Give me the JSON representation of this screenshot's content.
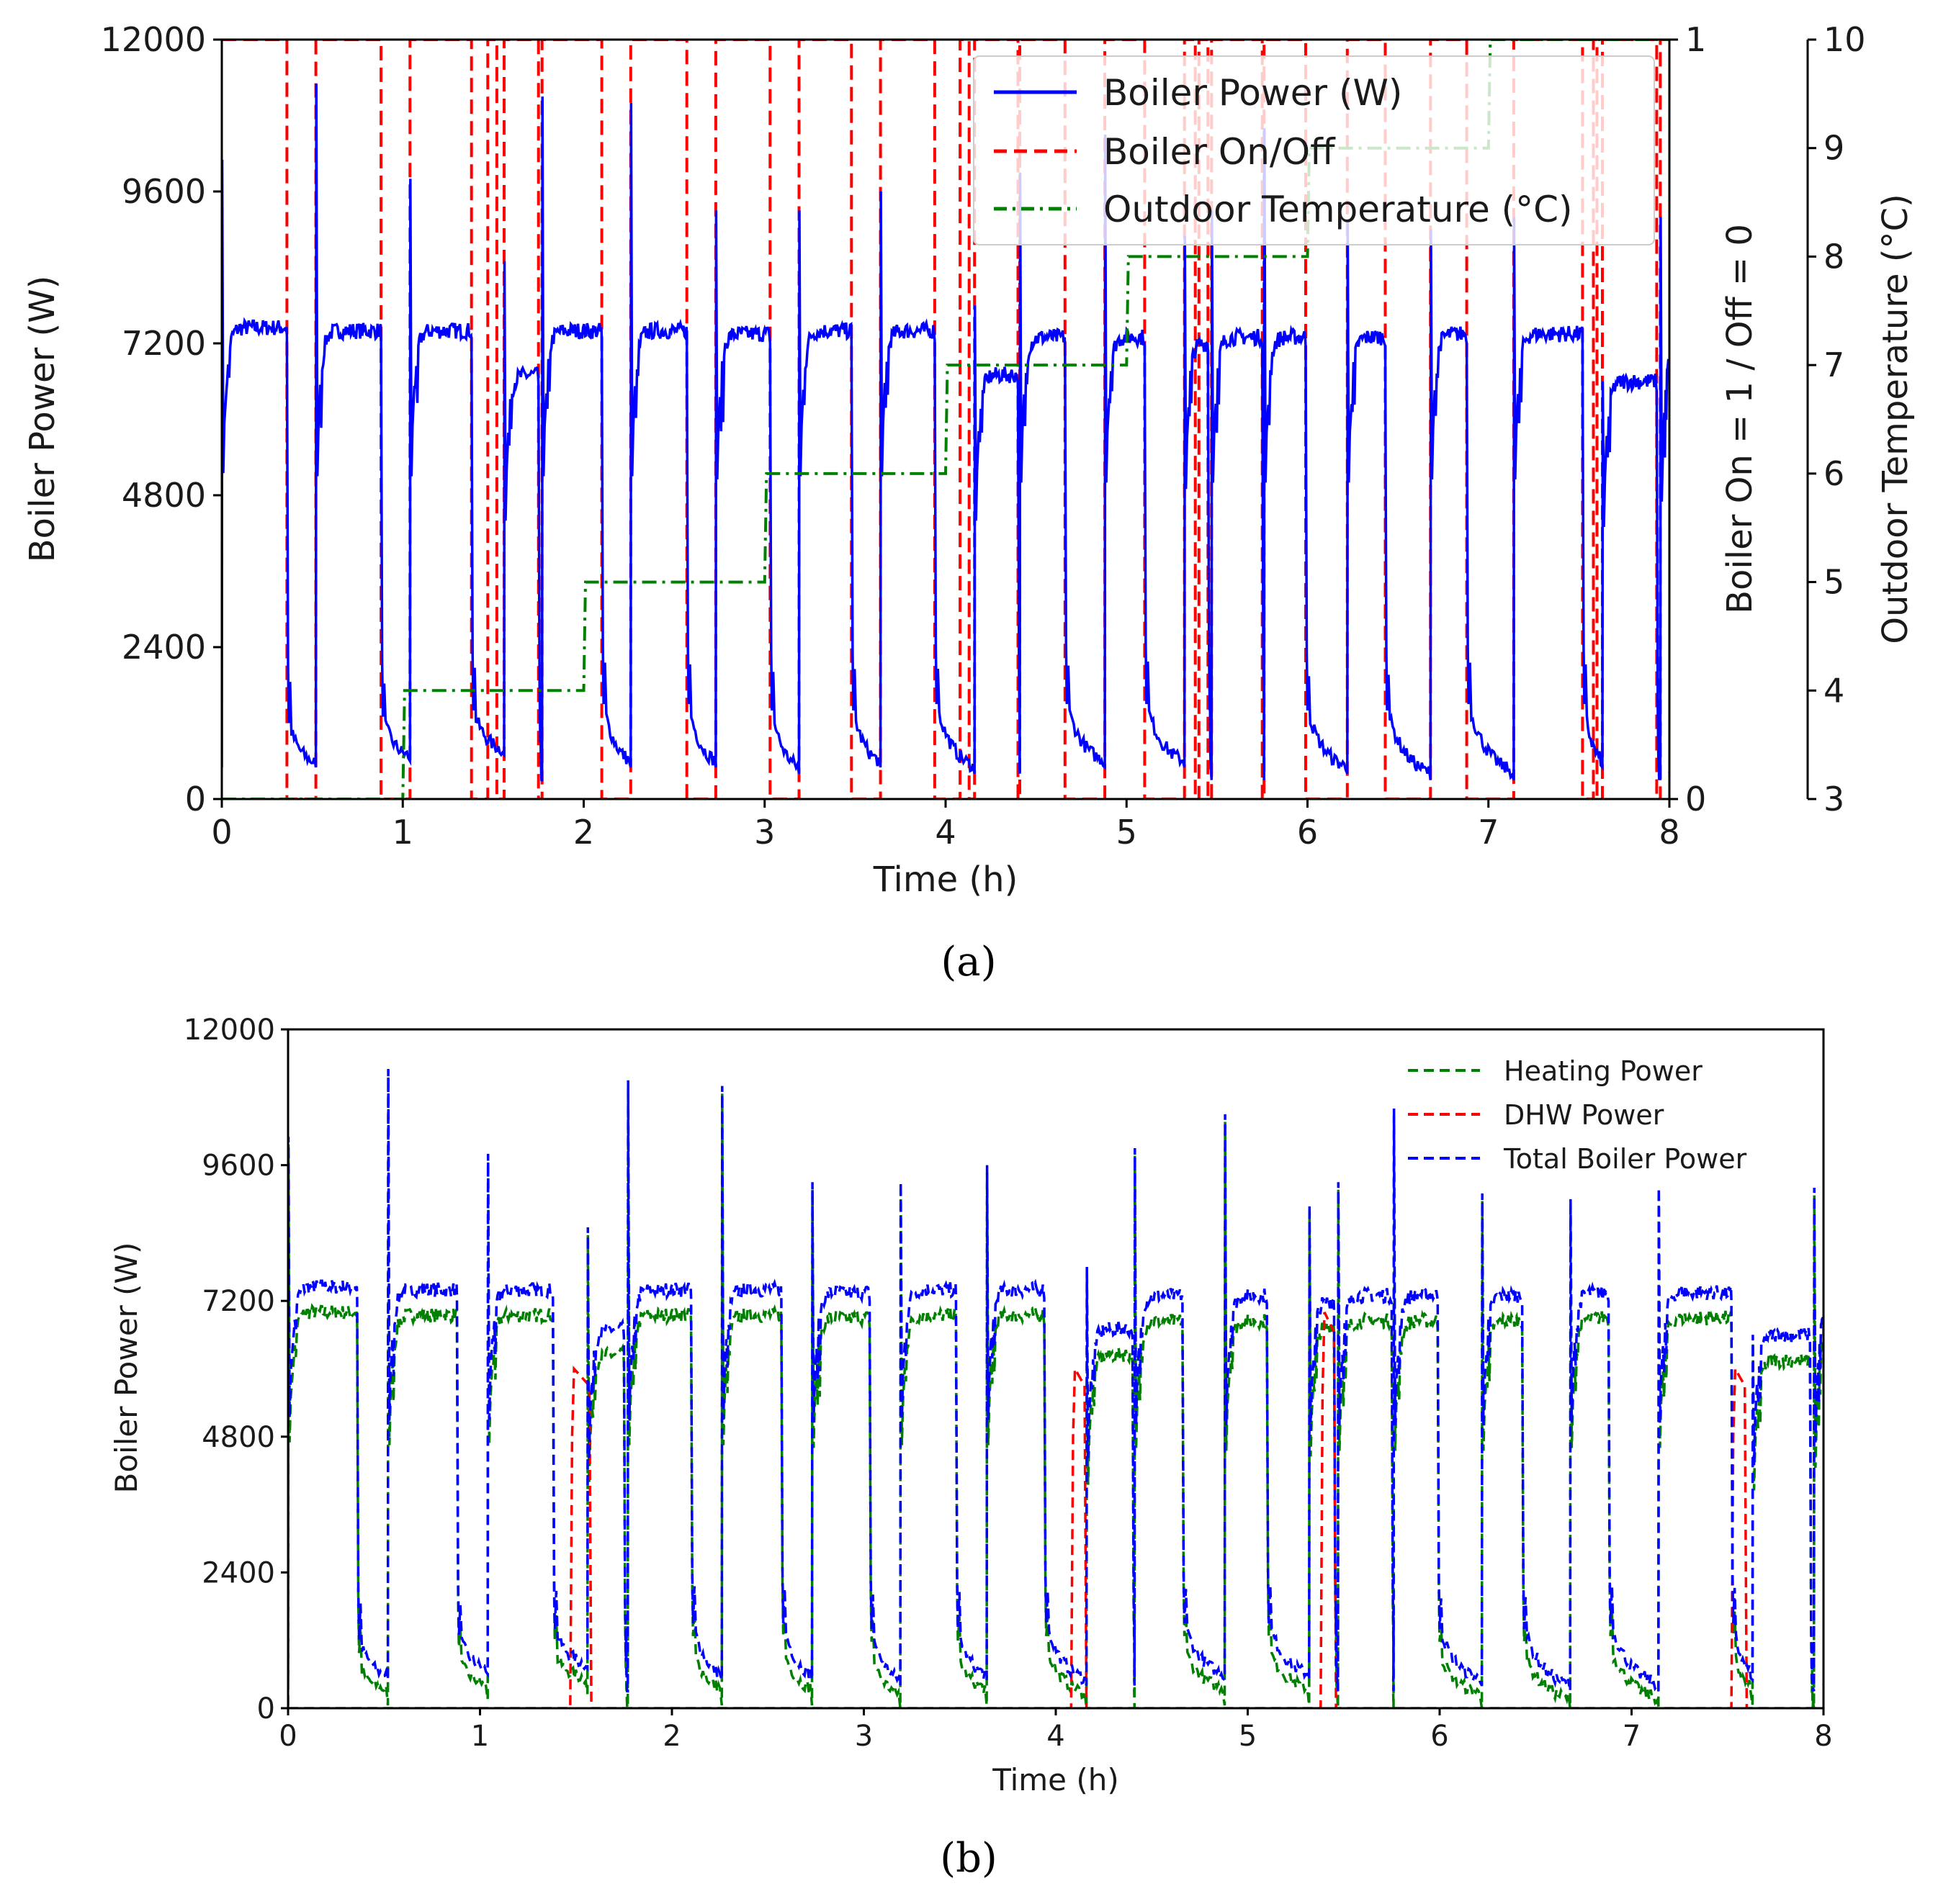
{
  "chart_data": [
    {
      "panel": "a",
      "type": "line",
      "caption": "(a)",
      "xlabel": "Time (h)",
      "ylabel_left": "Boiler Power (W)",
      "ylabel_right1": "Boiler On = 1 / Off = 0",
      "ylabel_right2": "Outdoor Temperature (°C)",
      "xlim": [
        0,
        8
      ],
      "ylim_left": [
        0,
        12000
      ],
      "ylim_right1": [
        0,
        1
      ],
      "ylim_right2": [
        3,
        10
      ],
      "x_ticks": [
        "0",
        "1",
        "2",
        "3",
        "4",
        "5",
        "6",
        "7",
        "8"
      ],
      "y_ticks_left": [
        "0",
        "2400",
        "4800",
        "7200",
        "9600",
        "12000"
      ],
      "y_ticks_right1": [
        "0",
        "1"
      ],
      "y_ticks_right2": [
        "3",
        "4",
        "5",
        "6",
        "7",
        "8",
        "9",
        "10"
      ],
      "legend": {
        "position": "top-right",
        "entries": [
          {
            "label": "Boiler Power (W)",
            "color": "#0000ff",
            "style": "solid"
          },
          {
            "label": "Boiler On/Off",
            "color": "#ff0000",
            "style": "dashed"
          },
          {
            "label": "Outdoor Temperature (°C)",
            "color": "#008000",
            "style": "dashdot"
          }
        ]
      },
      "boiler_on_off": {
        "on_periods": [
          [
            0.0,
            0.36
          ],
          [
            0.52,
            0.88
          ],
          [
            1.04,
            1.38
          ],
          [
            1.47,
            1.52
          ],
          [
            1.56,
            1.75
          ],
          [
            1.77,
            2.1
          ],
          [
            2.26,
            2.57
          ],
          [
            2.73,
            3.03
          ],
          [
            3.19,
            3.48
          ],
          [
            3.64,
            3.94
          ],
          [
            4.08,
            4.13
          ],
          [
            4.16,
            4.4
          ],
          [
            4.41,
            4.66
          ],
          [
            4.88,
            5.1
          ],
          [
            5.32,
            5.38
          ],
          [
            5.4,
            5.45
          ],
          [
            5.47,
            5.75
          ],
          [
            5.76,
            5.99
          ],
          [
            6.22,
            6.43
          ],
          [
            6.68,
            6.88
          ],
          [
            7.14,
            7.52
          ],
          [
            7.58,
            7.6
          ],
          [
            7.63,
            7.93
          ],
          [
            7.95,
            8.0
          ]
        ]
      },
      "outdoor_temperature": {
        "x": [
          0,
          1,
          1.01,
          2,
          2.01,
          3,
          3.01,
          4,
          4.01,
          5,
          5.01,
          6,
          6.01,
          7,
          7.01,
          8
        ],
        "y": [
          3,
          3,
          4,
          4,
          5,
          5,
          6,
          6,
          7,
          7,
          8,
          8,
          9,
          9,
          10,
          10
        ]
      },
      "boiler_power": {
        "cycle_starts": [
          0.0,
          0.52,
          1.04,
          1.56,
          1.77,
          2.26,
          2.73,
          3.19,
          3.64,
          4.16,
          4.41,
          4.88,
          5.32,
          5.47,
          5.76,
          6.22,
          6.68,
          7.14,
          7.63,
          7.95
        ],
        "cycle_ends": [
          0.36,
          0.88,
          1.38,
          1.75,
          2.1,
          2.57,
          3.03,
          3.48,
          3.94,
          4.4,
          4.66,
          5.1,
          5.45,
          5.75,
          5.99,
          6.43,
          6.88,
          7.52,
          7.93,
          8.0
        ],
        "start_peaks": [
          10100,
          11300,
          9800,
          8500,
          11100,
          11000,
          9300,
          9300,
          9600,
          7800,
          9900,
          10500,
          8900,
          9300,
          10600,
          9100,
          9000,
          9200,
          6600,
          9200
        ],
        "plateaus": [
          7450,
          7400,
          7400,
          6700,
          7400,
          7400,
          7350,
          7400,
          7400,
          6700,
          7300,
          7300,
          7200,
          7300,
          7300,
          7300,
          7350,
          7350,
          6600,
          7000
        ],
        "off_levels": [
          1200,
          1300,
          1400,
          900,
          1500,
          1500,
          1400,
          1400,
          1500,
          1000,
          1500,
          1500,
          1400,
          1200,
          1400,
          1400,
          1500,
          1500,
          500,
          1200
        ],
        "off_ends": [
          500,
          600,
          700,
          300,
          500,
          500,
          400,
          500,
          400,
          400,
          500,
          500,
          300,
          300,
          400,
          300,
          300,
          500,
          300,
          300
        ]
      }
    },
    {
      "panel": "b",
      "type": "line",
      "caption": "(b)",
      "xlabel": "Time (h)",
      "ylabel": "Boiler Power (W)",
      "xlim": [
        0,
        8
      ],
      "ylim": [
        0,
        12000
      ],
      "x_ticks": [
        "0",
        "1",
        "2",
        "3",
        "4",
        "5",
        "6",
        "7",
        "8"
      ],
      "y_ticks": [
        "0",
        "2400",
        "4800",
        "7200",
        "9600",
        "12000"
      ],
      "legend": {
        "position": "top-right",
        "entries": [
          {
            "label": "Heating Power",
            "color": "#008000",
            "style": "dashed"
          },
          {
            "label": "DHW Power",
            "color": "#ff0000",
            "style": "dashed"
          },
          {
            "label": "Total Boiler Power",
            "color": "#0000ff",
            "style": "dashed"
          }
        ]
      },
      "dhw_power": {
        "events": [
          [
            1.47,
            1.58,
            6000
          ],
          [
            4.08,
            4.16,
            6000
          ],
          [
            5.38,
            5.46,
            7000
          ],
          [
            7.52,
            7.6,
            6000
          ]
        ]
      },
      "heating_power_offset": 450
    }
  ]
}
